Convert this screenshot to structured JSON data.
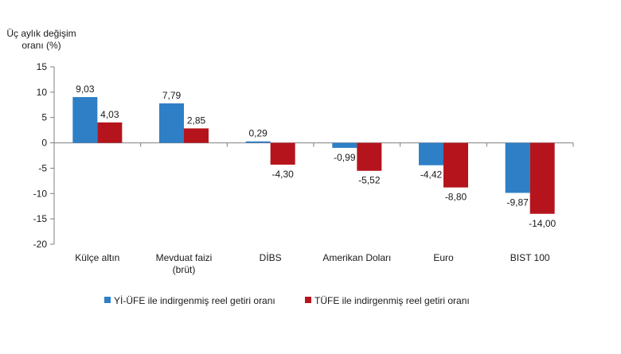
{
  "chart_data": {
    "type": "bar",
    "ylabel": [
      "Üç aylık değişim",
      "oranı (%)"
    ],
    "ylim": [
      -20,
      15
    ],
    "yticks": [
      15,
      10,
      5,
      0,
      -5,
      -10,
      -15,
      -20
    ],
    "categories": [
      [
        "Külçe altın"
      ],
      [
        "Mevduat faizi",
        "(brüt)"
      ],
      [
        "DİBS"
      ],
      [
        "Amerikan Doları"
      ],
      [
        "Euro"
      ],
      [
        "BIST 100"
      ]
    ],
    "series": [
      {
        "name": "Yİ-ÜFE ile indirgenmiş reel getiri oranı",
        "color": "#2e7fc6",
        "values": [
          9.03,
          7.79,
          0.29,
          -0.99,
          -4.42,
          -9.87
        ],
        "labels": [
          "9,03",
          "7,79",
          "0,29",
          "-0,99",
          "-4,42",
          "-9,87"
        ]
      },
      {
        "name": "TÜFE ile indirgenmiş reel getiri oranı",
        "color": "#b5141c",
        "values": [
          4.03,
          2.85,
          -4.3,
          -5.52,
          -8.8,
          -14.0
        ],
        "labels": [
          "4,03",
          "2,85",
          "-4,30",
          "-5,52",
          "-8,80",
          "-14,00"
        ]
      }
    ],
    "grid": false,
    "legend_position": "bottom"
  }
}
